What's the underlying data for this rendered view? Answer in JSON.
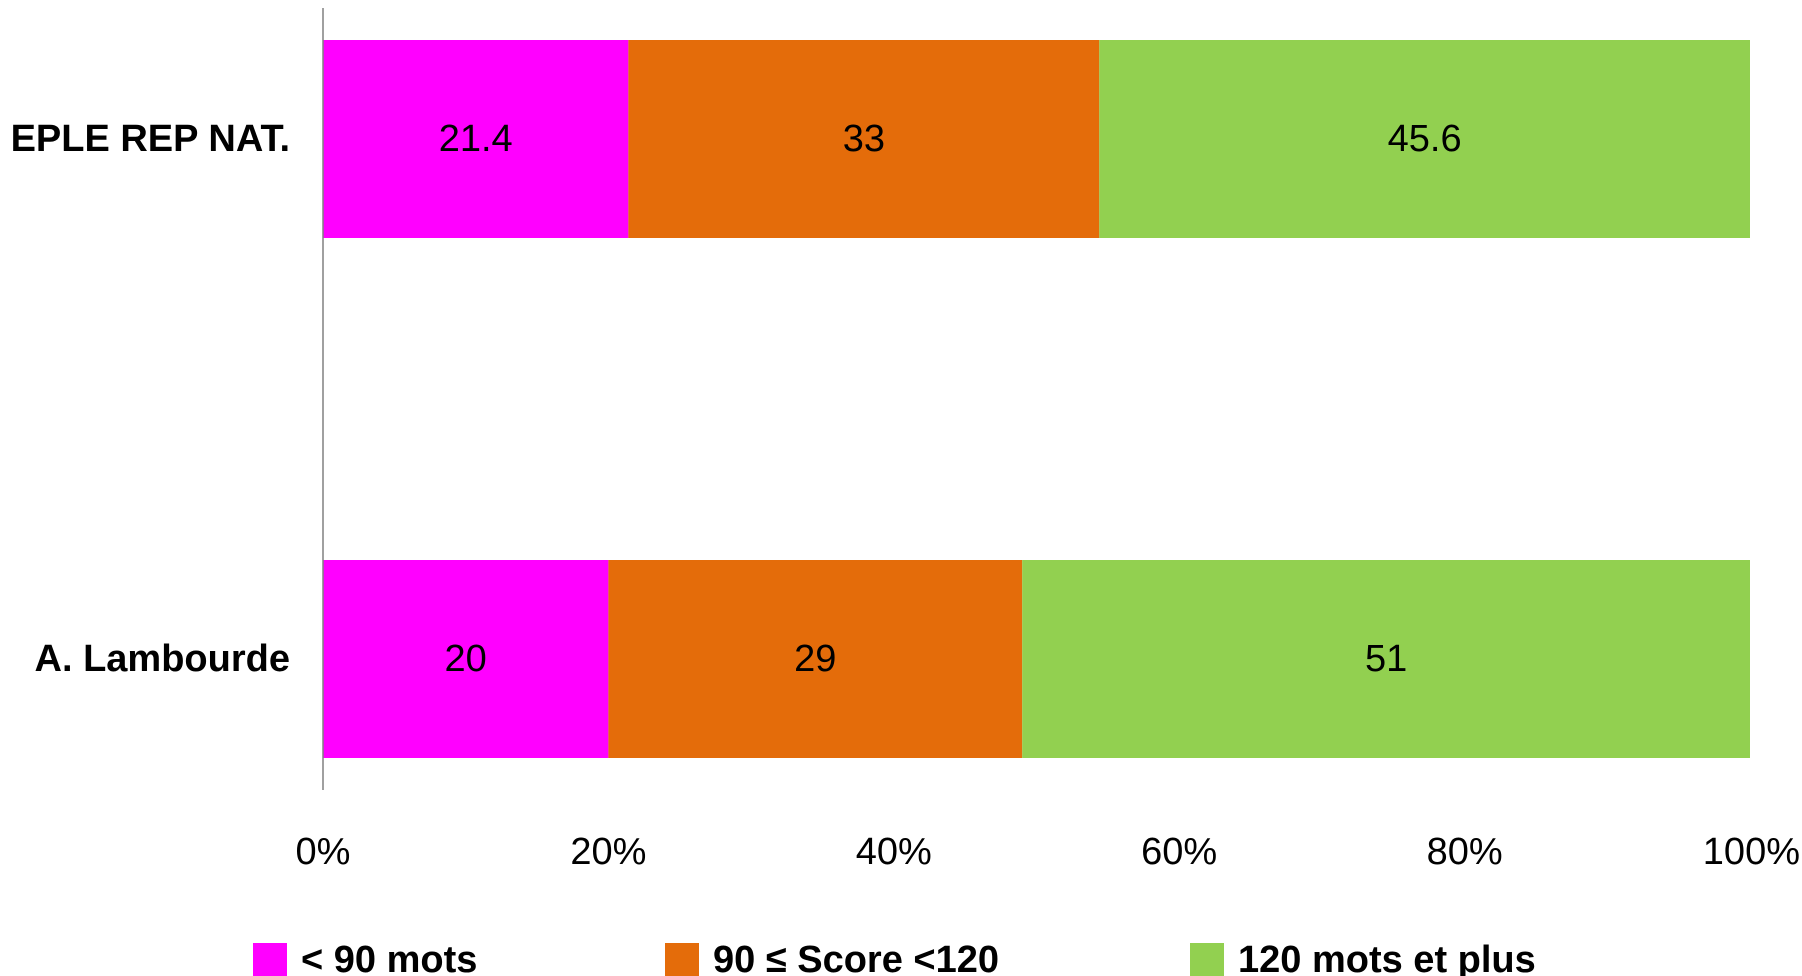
{
  "chart_data": {
    "type": "bar",
    "orientation": "horizontal",
    "stacked": true,
    "percent_stacked": true,
    "categories": [
      "EPLE REP NAT.",
      "A. Lambourde"
    ],
    "series": [
      {
        "name": "< 90 mots",
        "color": "#ff00ff",
        "values": [
          21.4,
          20
        ]
      },
      {
        "name": "90 ≤ Score <120",
        "color": "#e46c0a",
        "values": [
          33,
          29
        ]
      },
      {
        "name": "120 mots et plus",
        "color": "#92d050",
        "values": [
          45.6,
          51
        ]
      }
    ],
    "x_ticks": [
      "0%",
      "20%",
      "40%",
      "60%",
      "80%",
      "100%"
    ],
    "xlim": [
      0,
      100
    ],
    "grid": false,
    "legend_position": "bottom"
  }
}
